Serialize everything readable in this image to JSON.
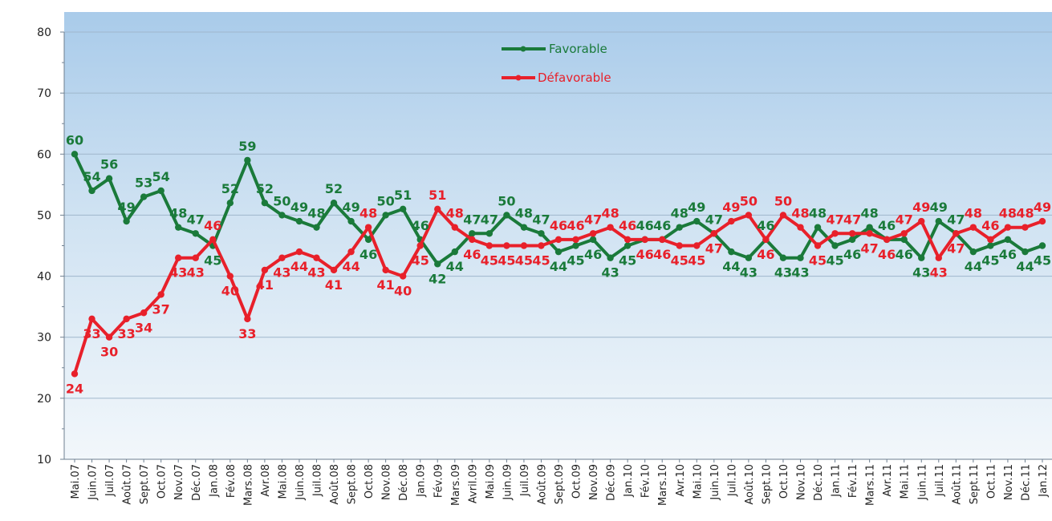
{
  "chart_data": {
    "type": "line",
    "categories": [
      "Mai.07",
      "Juin.07",
      "Juil.07",
      "Août.07",
      "Sept.07",
      "Oct.07",
      "Nov.07",
      "Déc.07",
      "Jan.08",
      "Fév.08",
      "Mars.08",
      "Avr.08",
      "Mai.08",
      "Juin.08",
      "Juil.08",
      "Août.08",
      "Sept.08",
      "Oct.08",
      "Nov.08",
      "Déc.08",
      "Jan.09",
      "Fév.09",
      "Mars.09",
      "Avril.09",
      "Mai.09",
      "Juin.09",
      "Juil.09",
      "Août.09",
      "Sept.09",
      "Oct.09",
      "Nov.09",
      "Déc.09",
      "Jan.10",
      "Fév.10",
      "Mars.10",
      "Avr.10",
      "Mai.10",
      "Juin.10",
      "Juil.10",
      "Août.10",
      "Sept.10",
      "Oct.10",
      "Nov.10",
      "Déc.10",
      "Jan.11",
      "Fév.11",
      "Mars.11",
      "Avr.11",
      "Mai.11",
      "Juin.11",
      "Juil.11",
      "Août.11",
      "Sept.11",
      "Oct.11",
      "Nov.11",
      "Déc.11",
      "Jan.12"
    ],
    "series": [
      {
        "name": "Favorable",
        "color": "#1a7a3a",
        "values": [
          60,
          54,
          56,
          49,
          53,
          54,
          48,
          47,
          45,
          52,
          59,
          52,
          50,
          49,
          48,
          52,
          49,
          46,
          50,
          51,
          46,
          42,
          44,
          47,
          47,
          50,
          48,
          47,
          44,
          45,
          46,
          43,
          45,
          46,
          46,
          48,
          49,
          47,
          44,
          43,
          46,
          43,
          43,
          48,
          45,
          46,
          48,
          46,
          46,
          43,
          49,
          47,
          44,
          45,
          46,
          44,
          45
        ]
      },
      {
        "name": "Défavorable",
        "color": "#e8202a",
        "values": [
          24,
          33,
          30,
          33,
          34,
          37,
          43,
          43,
          46,
          40,
          33,
          41,
          43,
          44,
          43,
          41,
          44,
          48,
          41,
          40,
          45,
          51,
          48,
          46,
          45,
          45,
          45,
          45,
          46,
          46,
          47,
          48,
          46,
          46,
          46,
          45,
          45,
          47,
          49,
          50,
          46,
          50,
          48,
          45,
          47,
          47,
          47,
          46,
          47,
          49,
          43,
          47,
          48,
          46,
          48,
          48,
          49
        ]
      }
    ],
    "y_ticks": [
      "10",
      "20",
      "30",
      "40",
      "50",
      "60",
      "70",
      "80"
    ],
    "ylim": [
      10,
      80
    ],
    "grid": true,
    "legend_position": "top-center"
  }
}
